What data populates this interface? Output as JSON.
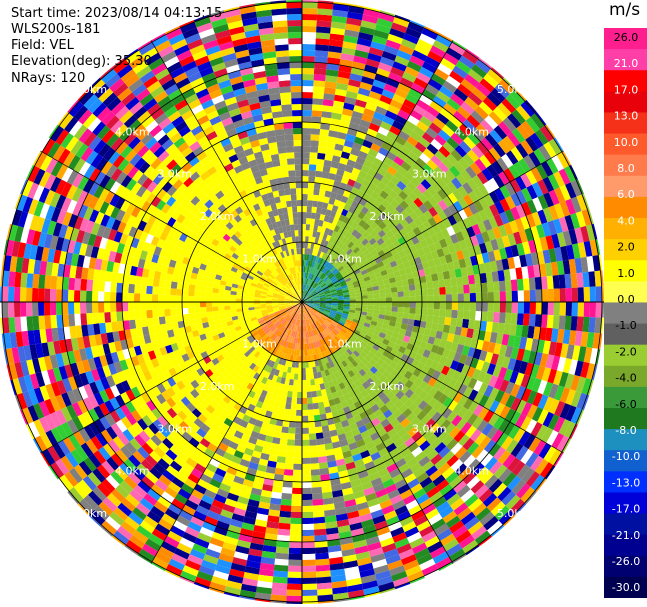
{
  "header": {
    "start_time": "Start time: 2023/08/14 04:13:15",
    "instrument": "WLS200s-181",
    "field": "Field: VEL",
    "elevation": "Elevation(deg): 35.30",
    "nrays": "NRays: 120"
  },
  "colorbar": {
    "unit": "m/s",
    "ticks": [
      "26.0",
      "21.0",
      "17.0",
      "13.0",
      "10.0",
      "8.0",
      "6.0",
      "4.0",
      "2.0",
      "1.0",
      "0.0",
      "-1.0",
      "-2.0",
      "-4.0",
      "-6.0",
      "-8.0",
      "-10.0",
      "-13.0",
      "-17.0",
      "-21.0",
      "-26.0",
      "-30.0"
    ],
    "colors": [
      "#ff1f8f",
      "#ff3fa8",
      "#ff0000",
      "#e8000b",
      "#f5311a",
      "#ff5a2b",
      "#ff7b4b",
      "#ff9a6a",
      "#ff8c00",
      "#ffb000",
      "#ffd000",
      "#ffff00",
      "#ffff50",
      "#808080",
      "#606060",
      "#9acd32",
      "#7aa82a",
      "#3a9a3a",
      "#1f7a1f",
      "#1e90c0",
      "#1060d0",
      "#0030ff",
      "#0000d8",
      "#0010a0",
      "#000090",
      "#000070",
      "#000050"
    ]
  },
  "chart_data": {
    "type": "heatmap",
    "projection": "polar PPI",
    "field": "VEL",
    "unit": "m/s",
    "nrays": 120,
    "range_rings_km": [
      1.0,
      2.0,
      3.0,
      4.0,
      5.0
    ],
    "ring_labels": [
      "1.0km",
      "2.0km",
      "3.0km",
      "4.0km",
      "5.0km"
    ],
    "value_range": [
      -30.0,
      26.0
    ],
    "sectors": [
      {
        "azimuth_deg": [
          270,
          360
        ],
        "velocity_ms": 2.0,
        "note": "yellow"
      },
      {
        "azimuth_deg": [
          0,
          90
        ],
        "velocity_ms": -2.0,
        "note": "olive-green"
      },
      {
        "azimuth_deg": [
          90,
          180
        ],
        "velocity_ms": -2.0,
        "note": "olive-green"
      },
      {
        "azimuth_deg": [
          180,
          270
        ],
        "velocity_ms": 2.0,
        "note": "yellow"
      },
      {
        "azimuth_deg": [
          130,
          230
        ],
        "velocity_ms": 8.0,
        "note": "orange near center"
      }
    ],
    "noise_beyond_km": 3.5
  }
}
